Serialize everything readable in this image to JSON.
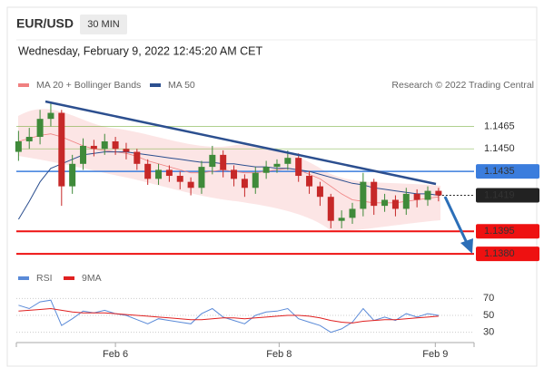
{
  "header": {
    "symbol": "EUR/USD",
    "interval": "30 MIN",
    "datetime": "Wednesday, February 9, 2022 12:45:20 AM CET"
  },
  "chart_data": [
    {
      "type": "candlestick",
      "credit": "Research © 2022 Trading Central",
      "x": [
        0,
        1,
        2,
        3,
        4,
        5,
        6,
        7,
        8,
        9,
        10,
        11,
        12,
        13,
        14,
        15,
        16,
        17,
        18,
        19,
        20,
        21,
        22,
        23,
        24,
        25,
        26,
        27,
        28,
        29,
        30,
        31,
        32,
        33,
        34,
        35,
        36,
        37,
        38,
        39
      ],
      "open": [
        1.1448,
        1.1455,
        1.1458,
        1.147,
        1.1474,
        1.1425,
        1.144,
        1.1452,
        1.145,
        1.1455,
        1.145,
        1.1448,
        1.144,
        1.143,
        1.1436,
        1.1432,
        1.1428,
        1.1424,
        1.1438,
        1.1446,
        1.1436,
        1.143,
        1.1424,
        1.1434,
        1.1438,
        1.144,
        1.1444,
        1.1432,
        1.1425,
        1.1418,
        1.1402,
        1.1404,
        1.141,
        1.1428,
        1.1412,
        1.1416,
        1.141,
        1.142,
        1.1416,
        1.1422
      ],
      "high": [
        1.1462,
        1.1464,
        1.1476,
        1.1481,
        1.1476,
        1.1446,
        1.1457,
        1.1456,
        1.146,
        1.1458,
        1.1454,
        1.145,
        1.1443,
        1.144,
        1.1439,
        1.1435,
        1.1431,
        1.1442,
        1.1452,
        1.1449,
        1.1439,
        1.1433,
        1.1438,
        1.1442,
        1.1443,
        1.1449,
        1.1447,
        1.1435,
        1.1428,
        1.142,
        1.1409,
        1.1414,
        1.1434,
        1.143,
        1.142,
        1.1419,
        1.1424,
        1.1423,
        1.1425,
        1.1424
      ],
      "low": [
        1.1442,
        1.145,
        1.1453,
        1.1465,
        1.1412,
        1.142,
        1.1436,
        1.1445,
        1.1446,
        1.1446,
        1.1443,
        1.1436,
        1.1426,
        1.1426,
        1.1428,
        1.1423,
        1.1419,
        1.142,
        1.1433,
        1.1431,
        1.1425,
        1.1418,
        1.142,
        1.143,
        1.1434,
        1.1436,
        1.1428,
        1.142,
        1.1412,
        1.1397,
        1.1397,
        1.14,
        1.1405,
        1.1406,
        1.1408,
        1.1405,
        1.1406,
        1.1411,
        1.1412,
        1.1415
      ],
      "close": [
        1.1455,
        1.1458,
        1.147,
        1.1474,
        1.1425,
        1.144,
        1.1452,
        1.145,
        1.1455,
        1.145,
        1.1448,
        1.144,
        1.143,
        1.1436,
        1.1432,
        1.1428,
        1.1424,
        1.1438,
        1.1446,
        1.1436,
        1.143,
        1.1424,
        1.1434,
        1.1438,
        1.144,
        1.1444,
        1.1432,
        1.1425,
        1.1418,
        1.1402,
        1.1404,
        1.141,
        1.1428,
        1.1412,
        1.1416,
        1.141,
        1.142,
        1.1416,
        1.1422,
        1.1419
      ],
      "up_color": "#3f8a3a",
      "down_color": "#c62828",
      "series": [
        {
          "name": "MA 20 + Bollinger Bands",
          "color": "#f08080",
          "values": [
            1.1455,
            1.1457,
            1.1459,
            1.146,
            1.1458,
            1.1455,
            1.1452,
            1.145,
            1.1449,
            1.1448,
            1.1447,
            1.1445,
            1.1442,
            1.144,
            1.1438,
            1.1436,
            1.1434,
            1.1434,
            1.1435,
            1.1436,
            1.1435,
            1.1434,
            1.1434,
            1.1435,
            1.1436,
            1.1437,
            1.1436,
            1.1433,
            1.143,
            1.1425,
            1.142,
            1.1416,
            1.1415,
            1.1414,
            1.1414,
            1.1414,
            1.1415,
            1.1416,
            1.1417,
            1.1418
          ]
        },
        {
          "name": "MA 50",
          "color": "#2c4f8f",
          "values": [
            1.1403,
            1.1415,
            1.1428,
            1.1437,
            1.144,
            1.1443,
            1.1446,
            1.1447,
            1.1448,
            1.1448,
            1.1448,
            1.1447,
            1.1446,
            1.1445,
            1.1444,
            1.1443,
            1.1442,
            1.1441,
            1.1441,
            1.144,
            1.144,
            1.1439,
            1.1438,
            1.1438,
            1.1437,
            1.1437,
            1.1436,
            1.1435,
            1.1433,
            1.1431,
            1.1429,
            1.1427,
            1.1426,
            1.1424,
            1.1423,
            1.1422,
            1.1421,
            1.142,
            1.142,
            1.1419
          ]
        }
      ],
      "levels": [
        {
          "value": 1.1465,
          "label": "1.1465",
          "color": "#6aa62a",
          "style": "line"
        },
        {
          "value": 1.145,
          "label": "1.1450",
          "color": "#6aa62a",
          "style": "line"
        },
        {
          "value": 1.1435,
          "label": "1.1435",
          "color": "#3b7ddd",
          "style": "box"
        },
        {
          "value": 1.1419,
          "label": "1.1419",
          "color": "#222222",
          "style": "current"
        },
        {
          "value": 1.1395,
          "label": "1.1395",
          "color": "#ee1111",
          "style": "support"
        },
        {
          "value": 1.138,
          "label": "1.1380",
          "color": "#ee1111",
          "style": "support"
        }
      ],
      "xlim": [
        -0.2,
        42.3
      ],
      "ylim": [
        1.1374,
        1.1484
      ],
      "xticks": [
        {
          "value": 9,
          "label": "Feb 6"
        },
        {
          "value": 24.2,
          "label": "Feb 8"
        },
        {
          "value": 38.7,
          "label": "Feb 9"
        }
      ]
    },
    {
      "type": "line",
      "series": [
        {
          "name": "RSI",
          "color": "#5a8ad8",
          "values": [
            62,
            58,
            66,
            68,
            38,
            46,
            55,
            53,
            56,
            52,
            50,
            45,
            40,
            46,
            44,
            42,
            40,
            52,
            58,
            48,
            44,
            40,
            50,
            54,
            55,
            58,
            46,
            42,
            38,
            30,
            34,
            42,
            58,
            44,
            48,
            44,
            52,
            48,
            52,
            50
          ]
        },
        {
          "name": "9MA",
          "color": "#e02020",
          "values": [
            55,
            56,
            57,
            58,
            56,
            54,
            53,
            53,
            53,
            52,
            51,
            50,
            49,
            48,
            47,
            46,
            45,
            45,
            46,
            47,
            47,
            46,
            47,
            48,
            49,
            50,
            50,
            49,
            47,
            44,
            42,
            41,
            43,
            44,
            45,
            45,
            46,
            47,
            48,
            49
          ]
        }
      ],
      "ylim": [
        20,
        80
      ],
      "yticks": [
        30,
        50,
        70
      ]
    }
  ]
}
